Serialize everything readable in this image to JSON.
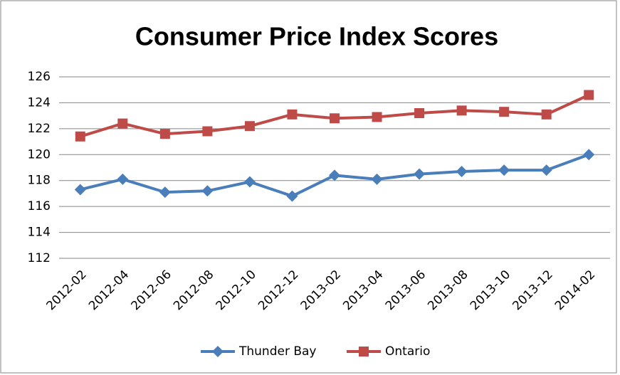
{
  "chart_data": {
    "type": "line",
    "title": "Consumer Price Index Scores",
    "categories": [
      "2012-02",
      "2012-04",
      "2012-06",
      "2012-08",
      "2012-10",
      "2012-12",
      "2013-02",
      "2013-04",
      "2013-06",
      "2013-08",
      "2013-10",
      "2013-12",
      "2014-02"
    ],
    "series": [
      {
        "name": "Thunder Bay",
        "color": "#4a7ebb",
        "marker": "diamond",
        "values": [
          117.3,
          118.1,
          117.1,
          117.2,
          117.9,
          116.8,
          118.4,
          118.1,
          118.5,
          118.7,
          118.8,
          118.8,
          120.0
        ]
      },
      {
        "name": "Ontario",
        "color": "#be4b48",
        "marker": "square",
        "values": [
          121.4,
          122.4,
          121.6,
          121.8,
          122.2,
          123.1,
          122.8,
          122.9,
          123.2,
          123.4,
          123.3,
          123.1,
          124.6
        ]
      }
    ],
    "ylim": [
      112,
      126
    ],
    "yticks": [
      112,
      114,
      116,
      118,
      120,
      122,
      124,
      126
    ],
    "grid": true,
    "legend": "bottom"
  }
}
